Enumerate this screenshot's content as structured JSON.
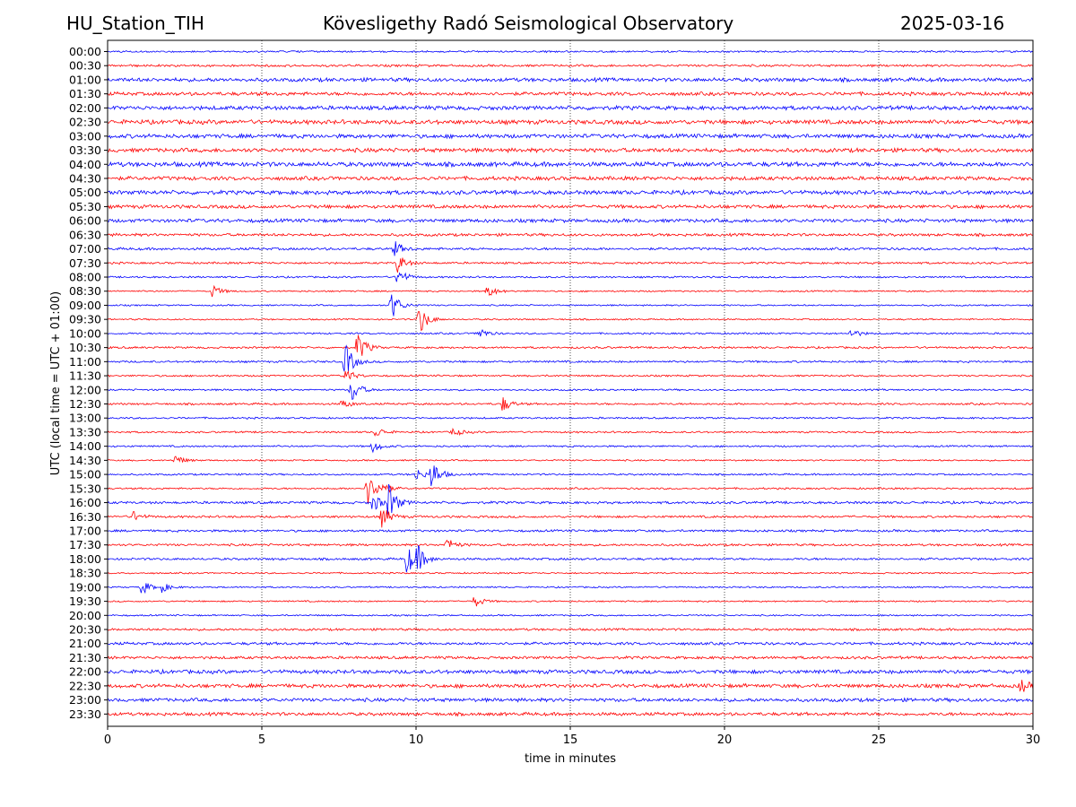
{
  "header": {
    "station": "HU_Station_TIH",
    "observatory": "Kövesligethy Radó Seismological Observatory",
    "date": "2025-03-16"
  },
  "chart_data": {
    "type": "line",
    "title": "Kövesligethy Radó Seismological Observatory",
    "xlabel": "time in minutes",
    "ylabel": "UTC (local time = UTC + 01:00)",
    "xlim": [
      0,
      30
    ],
    "x_ticks": [
      "0",
      "5",
      "10",
      "15",
      "20",
      "25",
      "30"
    ],
    "x_grid": "dotted vertical lines at each tick",
    "trace_colors": [
      "#0000ff",
      "#ff0000"
    ],
    "rows": [
      {
        "label": "00:00",
        "color": "#0000ff",
        "noise": 0.35,
        "events": []
      },
      {
        "label": "00:30",
        "color": "#ff0000",
        "noise": 0.45,
        "events": []
      },
      {
        "label": "01:00",
        "color": "#0000ff",
        "noise": 0.75,
        "events": []
      },
      {
        "label": "01:30",
        "color": "#ff0000",
        "noise": 0.7,
        "events": []
      },
      {
        "label": "02:00",
        "color": "#0000ff",
        "noise": 0.8,
        "events": []
      },
      {
        "label": "02:30",
        "color": "#ff0000",
        "noise": 0.85,
        "events": []
      },
      {
        "label": "03:00",
        "color": "#0000ff",
        "noise": 0.8,
        "events": []
      },
      {
        "label": "03:30",
        "color": "#ff0000",
        "noise": 0.8,
        "events": []
      },
      {
        "label": "04:00",
        "color": "#0000ff",
        "noise": 0.9,
        "events": []
      },
      {
        "label": "04:30",
        "color": "#ff0000",
        "noise": 0.75,
        "events": []
      },
      {
        "label": "05:00",
        "color": "#0000ff",
        "noise": 0.8,
        "events": []
      },
      {
        "label": "05:30",
        "color": "#ff0000",
        "noise": 0.7,
        "events": []
      },
      {
        "label": "06:00",
        "color": "#0000ff",
        "noise": 0.7,
        "events": []
      },
      {
        "label": "06:30",
        "color": "#ff0000",
        "noise": 0.55,
        "events": []
      },
      {
        "label": "07:00",
        "color": "#0000ff",
        "noise": 0.5,
        "events": [
          {
            "t": 9.3,
            "amp": 1.0
          }
        ]
      },
      {
        "label": "07:30",
        "color": "#ff0000",
        "noise": 0.4,
        "events": [
          {
            "t": 9.4,
            "amp": 1.2
          }
        ]
      },
      {
        "label": "08:00",
        "color": "#0000ff",
        "noise": 0.35,
        "events": [
          {
            "t": 9.4,
            "amp": 1.3
          }
        ]
      },
      {
        "label": "08:30",
        "color": "#ff0000",
        "noise": 0.3,
        "events": [
          {
            "t": 3.4,
            "amp": 0.8
          },
          {
            "t": 12.3,
            "amp": 0.9
          }
        ]
      },
      {
        "label": "09:00",
        "color": "#0000ff",
        "noise": 0.3,
        "events": [
          {
            "t": 9.2,
            "amp": 1.9
          }
        ]
      },
      {
        "label": "09:30",
        "color": "#ff0000",
        "noise": 0.3,
        "events": [
          {
            "t": 10.1,
            "amp": 2.1
          }
        ]
      },
      {
        "label": "10:00",
        "color": "#0000ff",
        "noise": 0.35,
        "events": [
          {
            "t": 12.0,
            "amp": 0.9
          },
          {
            "t": 24.1,
            "amp": 0.6
          }
        ]
      },
      {
        "label": "10:30",
        "color": "#ff0000",
        "noise": 0.4,
        "events": [
          {
            "t": 8.1,
            "amp": 2.1
          }
        ]
      },
      {
        "label": "11:00",
        "color": "#0000ff",
        "noise": 0.4,
        "events": [
          {
            "t": 7.7,
            "amp": 2.4
          }
        ]
      },
      {
        "label": "11:30",
        "color": "#ff0000",
        "noise": 0.35,
        "events": [
          {
            "t": 7.7,
            "amp": 1.0
          }
        ]
      },
      {
        "label": "12:00",
        "color": "#0000ff",
        "noise": 0.35,
        "events": [
          {
            "t": 7.9,
            "amp": 1.8
          }
        ]
      },
      {
        "label": "12:30",
        "color": "#ff0000",
        "noise": 0.4,
        "events": [
          {
            "t": 7.6,
            "amp": 0.6
          },
          {
            "t": 12.8,
            "amp": 1.0
          }
        ]
      },
      {
        "label": "13:00",
        "color": "#0000ff",
        "noise": 0.35,
        "events": []
      },
      {
        "label": "13:30",
        "color": "#ff0000",
        "noise": 0.35,
        "events": [
          {
            "t": 8.7,
            "amp": 0.7
          },
          {
            "t": 11.2,
            "amp": 0.6
          }
        ]
      },
      {
        "label": "14:00",
        "color": "#0000ff",
        "noise": 0.35,
        "events": [
          {
            "t": 8.6,
            "amp": 0.8
          }
        ]
      },
      {
        "label": "14:30",
        "color": "#ff0000",
        "noise": 0.3,
        "events": [
          {
            "t": 2.2,
            "amp": 0.7
          }
        ]
      },
      {
        "label": "15:00",
        "color": "#0000ff",
        "noise": 0.35,
        "events": [
          {
            "t": 10.0,
            "amp": 0.8
          },
          {
            "t": 10.5,
            "amp": 2.0
          }
        ]
      },
      {
        "label": "15:30",
        "color": "#ff0000",
        "noise": 0.35,
        "events": [
          {
            "t": 8.4,
            "amp": 2.2
          },
          {
            "t": 8.8,
            "amp": 1.2
          }
        ]
      },
      {
        "label": "16:00",
        "color": "#0000ff",
        "noise": 0.5,
        "events": [
          {
            "t": 8.6,
            "amp": 1.2
          },
          {
            "t": 9.1,
            "amp": 2.4
          }
        ]
      },
      {
        "label": "16:30",
        "color": "#ff0000",
        "noise": 0.45,
        "events": [
          {
            "t": 0.8,
            "amp": 0.7
          },
          {
            "t": 8.9,
            "amp": 1.4
          }
        ]
      },
      {
        "label": "17:00",
        "color": "#0000ff",
        "noise": 0.45,
        "events": []
      },
      {
        "label": "17:30",
        "color": "#ff0000",
        "noise": 0.45,
        "events": [
          {
            "t": 11.0,
            "amp": 0.9
          }
        ]
      },
      {
        "label": "18:00",
        "color": "#0000ff",
        "noise": 0.45,
        "events": [
          {
            "t": 9.7,
            "amp": 2.0
          },
          {
            "t": 10.0,
            "amp": 1.7
          }
        ]
      },
      {
        "label": "18:30",
        "color": "#ff0000",
        "noise": 0.3,
        "events": []
      },
      {
        "label": "19:00",
        "color": "#0000ff",
        "noise": 0.3,
        "events": [
          {
            "t": 1.1,
            "amp": 1.0
          },
          {
            "t": 1.7,
            "amp": 0.8
          }
        ]
      },
      {
        "label": "19:30",
        "color": "#ff0000",
        "noise": 0.3,
        "events": [
          {
            "t": 11.9,
            "amp": 0.8
          }
        ]
      },
      {
        "label": "20:00",
        "color": "#0000ff",
        "noise": 0.3,
        "events": []
      },
      {
        "label": "20:30",
        "color": "#ff0000",
        "noise": 0.45,
        "events": []
      },
      {
        "label": "21:00",
        "color": "#0000ff",
        "noise": 0.55,
        "events": []
      },
      {
        "label": "21:30",
        "color": "#ff0000",
        "noise": 0.55,
        "events": []
      },
      {
        "label": "22:00",
        "color": "#0000ff",
        "noise": 0.75,
        "events": []
      },
      {
        "label": "22:30",
        "color": "#ff0000",
        "noise": 0.75,
        "events": [
          {
            "t": 29.6,
            "amp": 0.8
          }
        ]
      },
      {
        "label": "23:00",
        "color": "#0000ff",
        "noise": 0.7,
        "events": []
      },
      {
        "label": "23:30",
        "color": "#ff0000",
        "noise": 0.65,
        "events": []
      }
    ]
  }
}
